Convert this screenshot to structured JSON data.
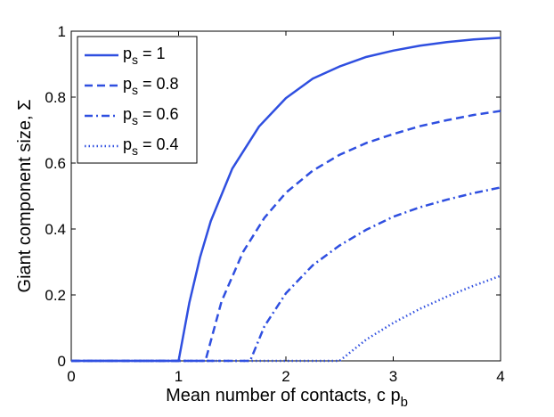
{
  "chart_data": {
    "type": "line",
    "title": "",
    "xlabel": "Mean number of contacts, c p",
    "xlabel_sub": "b",
    "ylabel": "Giant component size, Σ",
    "xlim": [
      0,
      4
    ],
    "ylim": [
      0,
      1
    ],
    "xticks": [
      "0",
      "1",
      "2",
      "3",
      "4"
    ],
    "yticks": [
      "0",
      "0.2",
      "0.4",
      "0.6",
      "0.8",
      "1"
    ],
    "grid": false,
    "legend_position": "top-left",
    "color": "#2f4fe0",
    "series": [
      {
        "name_main": "p",
        "name_sub": "s",
        "name_rest": " = 1",
        "style": "solid",
        "x": [
          0,
          1.0,
          1.1,
          1.2,
          1.3,
          1.5,
          1.75,
          2.0,
          2.25,
          2.5,
          2.75,
          3.0,
          3.25,
          3.5,
          3.75,
          4.0
        ],
        "y": [
          0,
          0,
          0.176,
          0.314,
          0.424,
          0.583,
          0.711,
          0.797,
          0.856,
          0.893,
          0.922,
          0.941,
          0.956,
          0.967,
          0.975,
          0.98
        ]
      },
      {
        "name_main": "p",
        "name_sub": "s",
        "name_rest": " = 0.8",
        "style": "dashed",
        "x": [
          0,
          1.25,
          1.4,
          1.6,
          1.8,
          2.0,
          2.25,
          2.5,
          2.75,
          3.0,
          3.25,
          3.5,
          3.75,
          4.0
        ],
        "y": [
          0,
          0,
          0.18,
          0.33,
          0.434,
          0.51,
          0.577,
          0.625,
          0.661,
          0.688,
          0.712,
          0.73,
          0.746,
          0.758
        ]
      },
      {
        "name_main": "p",
        "name_sub": "s",
        "name_rest": " = 0.6",
        "style": "dashdot",
        "x": [
          0,
          1.667,
          1.8,
          2.0,
          2.25,
          2.5,
          2.75,
          3.0,
          3.25,
          3.5,
          3.75,
          4.0
        ],
        "y": [
          0,
          0,
          0.105,
          0.205,
          0.29,
          0.35,
          0.398,
          0.437,
          0.466,
          0.489,
          0.509,
          0.526
        ]
      },
      {
        "name_main": "p",
        "name_sub": "s",
        "name_rest": " = 0.4",
        "style": "dotted",
        "x": [
          0,
          2.5,
          2.75,
          3.0,
          3.25,
          3.5,
          3.75,
          4.0
        ],
        "y": [
          0,
          0,
          0.065,
          0.115,
          0.158,
          0.195,
          0.228,
          0.258
        ]
      }
    ]
  }
}
